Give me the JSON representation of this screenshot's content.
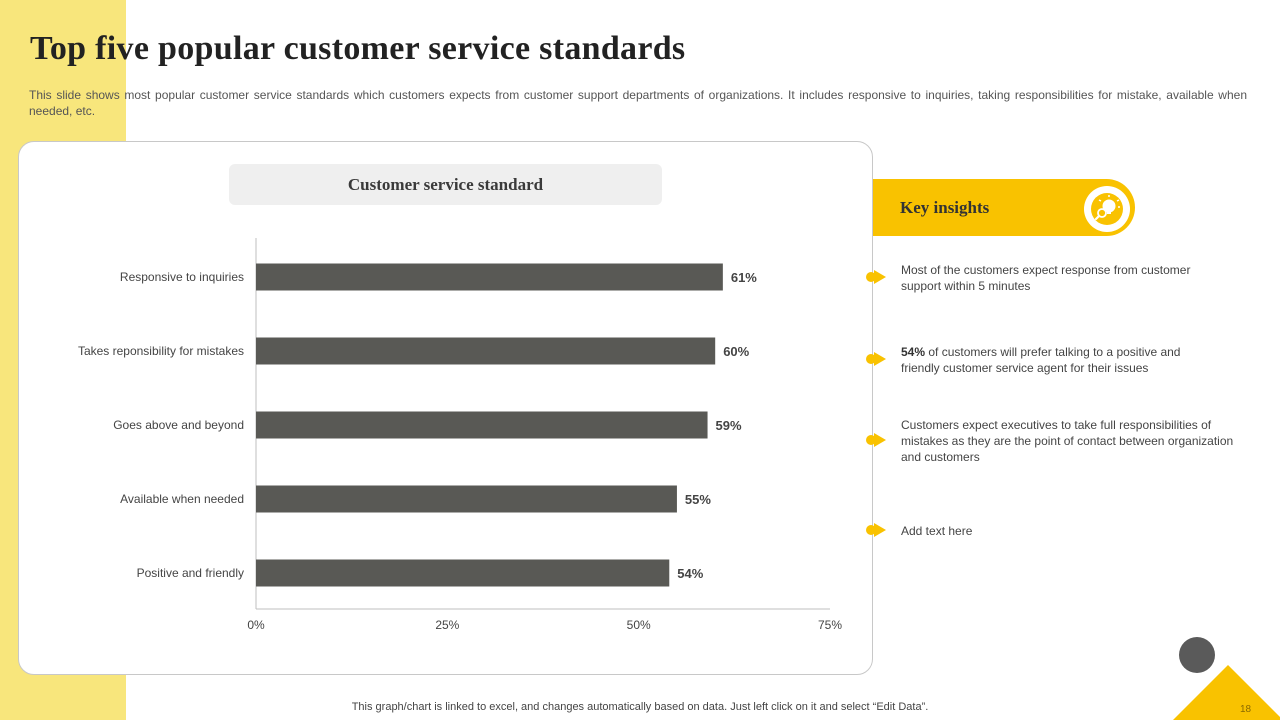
{
  "slide": {
    "title": "Top five popular customer service standards",
    "subtitle": "This slide shows most popular customer service standards which customers expects from customer support departments of organizations. It includes responsive to inquiries, taking responsibilities for mistake, available when needed, etc.",
    "footer_note": "This graph/chart is linked to excel, and changes automatically based on data. Just left click on it and select “Edit Data”.",
    "page_number": "18"
  },
  "insights": {
    "title": "Key insights",
    "items": [
      {
        "bold": "",
        "text": "Most of the customers expect response from customer support within 5 minutes"
      },
      {
        "bold": "54%",
        "text": " of customers will prefer talking to a positive and friendly customer service agent for their issues"
      },
      {
        "bold": "",
        "text": "Customers expect executives to take full responsibilities of mistakes as they are the point of contact between organization and customers"
      },
      {
        "bold": "",
        "text": "Add text here"
      }
    ]
  },
  "colors": {
    "accent": "#f9c200",
    "band": "#f8e67c",
    "bar": "#595955",
    "axis": "#bfbfbf"
  },
  "chart_data": {
    "type": "bar",
    "orientation": "horizontal",
    "title": "Customer service standard",
    "categories": [
      "Responsive to inquiries",
      "Takes reponsibility for mistakes",
      "Goes above and beyond",
      "Available when needed",
      "Positive and friendly"
    ],
    "values": [
      61,
      60,
      59,
      55,
      54
    ],
    "value_labels": [
      "61%",
      "60%",
      "59%",
      "55%",
      "54%"
    ],
    "xlim": [
      0,
      75
    ],
    "x_ticks": [
      0,
      25,
      50,
      75
    ],
    "x_tick_labels": [
      "0%",
      "25%",
      "50%",
      "75%"
    ],
    "xlabel": "",
    "ylabel": "",
    "grid": false,
    "legend": "none"
  }
}
